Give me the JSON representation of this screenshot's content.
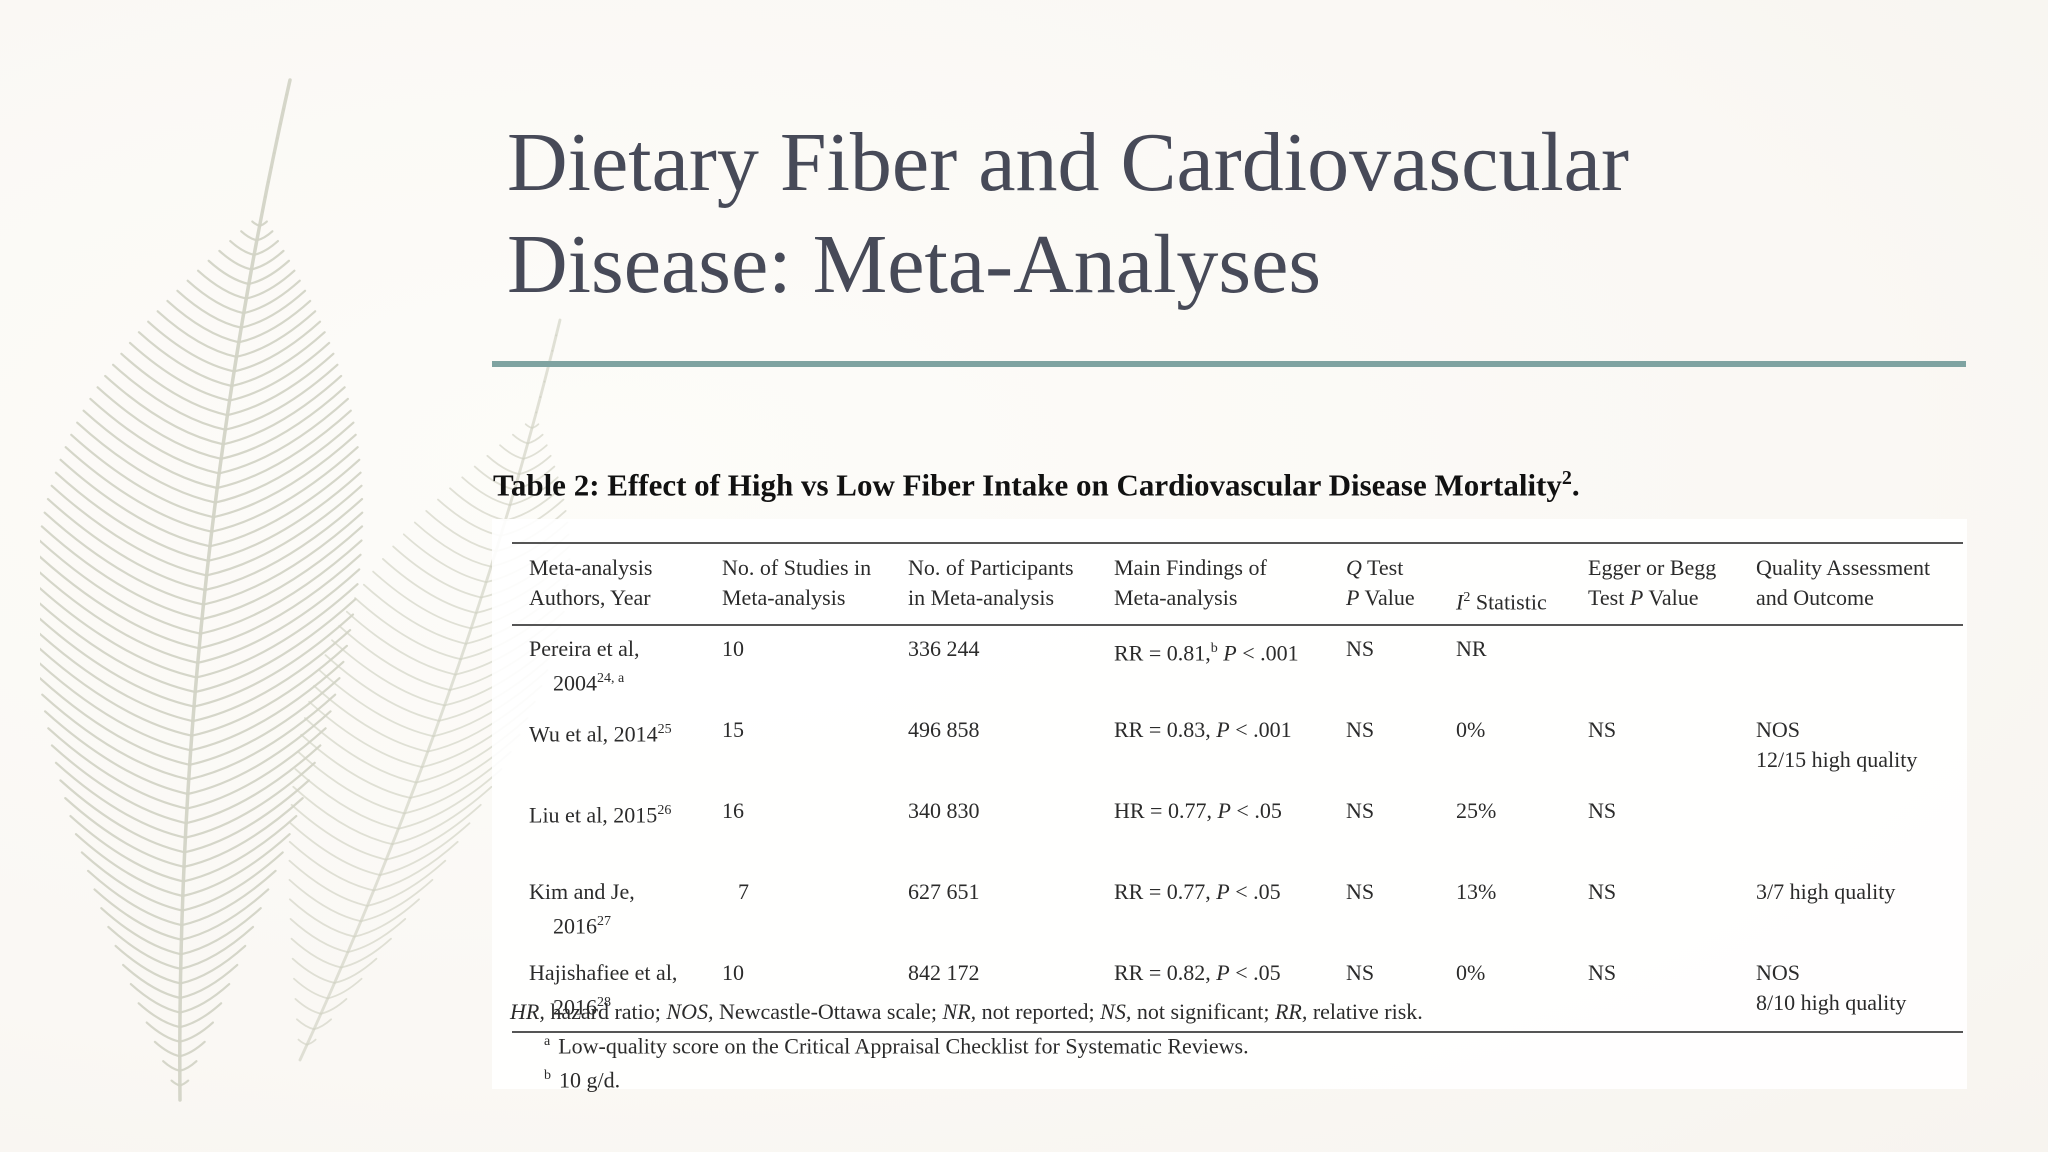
{
  "slide": {
    "title_line1": "Dietary Fiber and Cardiovascular",
    "title_line2": "Disease: Meta-Analyses",
    "accent_color": "#7fa3a1",
    "title_color": "#474a58"
  },
  "table": {
    "caption": "Table 2: Effect of High vs Low Fiber Intake on Cardiovascular Disease Mortality",
    "caption_ref": "2",
    "caption_end": ".",
    "headers": {
      "authors_l1": "Meta-analysis",
      "authors_l2": "Authors, Year",
      "studies_l1": "No. of Studies in",
      "studies_l2": "Meta-analysis",
      "participants_l1": "No. of Participants",
      "participants_l2": "in Meta-analysis",
      "findings_l1": "Main Findings of",
      "findings_l2": "Meta-analysis",
      "q_l1": "Q",
      "q_l1b": " Test",
      "q_l2": "P",
      "q_l2b": " Value",
      "i2_a": "I",
      "i2_sup": "2",
      "i2_b": " Statistic",
      "egger_l1": "Egger or Begg",
      "egger_l2a": "Test ",
      "egger_l2b": "P",
      "egger_l2c": " Value",
      "quality_l1": "Quality Assessment",
      "quality_l2": "and Outcome"
    },
    "rows": [
      {
        "author": "Pereira et al,",
        "year": "2004",
        "ref": "24, a",
        "studies": "10",
        "participants": "336 244",
        "finding_a": "RR = 0.81,",
        "finding_sup": "b",
        "finding_p": "P",
        "finding_b": " < .001",
        "q": "NS",
        "i2": "NR",
        "egger": "",
        "quality_l1": "",
        "quality_l2": ""
      },
      {
        "author": "Wu et al, 2014",
        "year": "",
        "ref": "25",
        "studies": "15",
        "participants": "496 858",
        "finding_a": "RR = 0.83, ",
        "finding_sup": "",
        "finding_p": "P",
        "finding_b": " < .001",
        "q": "NS",
        "i2": "0%",
        "egger": "NS",
        "quality_l1": "NOS",
        "quality_l2": "12/15 high quality"
      },
      {
        "author": "Liu et al, 2015",
        "year": "",
        "ref": "26",
        "studies": "16",
        "participants": "340 830",
        "finding_a": "HR = 0.77, ",
        "finding_sup": "",
        "finding_p": "P",
        "finding_b": " < .05",
        "q": "NS",
        "i2": "25%",
        "egger": "NS",
        "quality_l1": "",
        "quality_l2": ""
      },
      {
        "author": "Kim and Je,",
        "year": "2016",
        "ref": "27",
        "studies": "7",
        "participants": "627 651",
        "finding_a": "RR = 0.77, ",
        "finding_sup": "",
        "finding_p": "P",
        "finding_b": " < .05",
        "q": "NS",
        "i2": "13%",
        "egger": "NS",
        "quality_l1": "3/7 high quality",
        "quality_l2": ""
      },
      {
        "author": "Hajishafiee et al,",
        "year": "2016",
        "ref": "28",
        "studies": "10",
        "participants": "842 172",
        "finding_a": "RR = 0.82, ",
        "finding_sup": "",
        "finding_p": "P",
        "finding_b": " < .05",
        "q": "NS",
        "i2": "0%",
        "egger": "NS",
        "quality_l1": "NOS",
        "quality_l2": "8/10 high quality"
      }
    ],
    "footnotes": {
      "abbr": [
        {
          "term": "HR,",
          "def": " hazard ratio; "
        },
        {
          "term": "NOS,",
          "def": " Newcastle-Ottawa scale; "
        },
        {
          "term": "NR,",
          "def": " not reported; "
        },
        {
          "term": "NS,",
          "def": " not significant; "
        },
        {
          "term": "RR,",
          "def": " relative risk."
        }
      ],
      "note_a_mark": "a",
      "note_a": "Low-quality score on the Critical Appraisal Checklist for Systematic Reviews.",
      "note_b_mark": "b",
      "note_b": "10 g/d."
    }
  }
}
